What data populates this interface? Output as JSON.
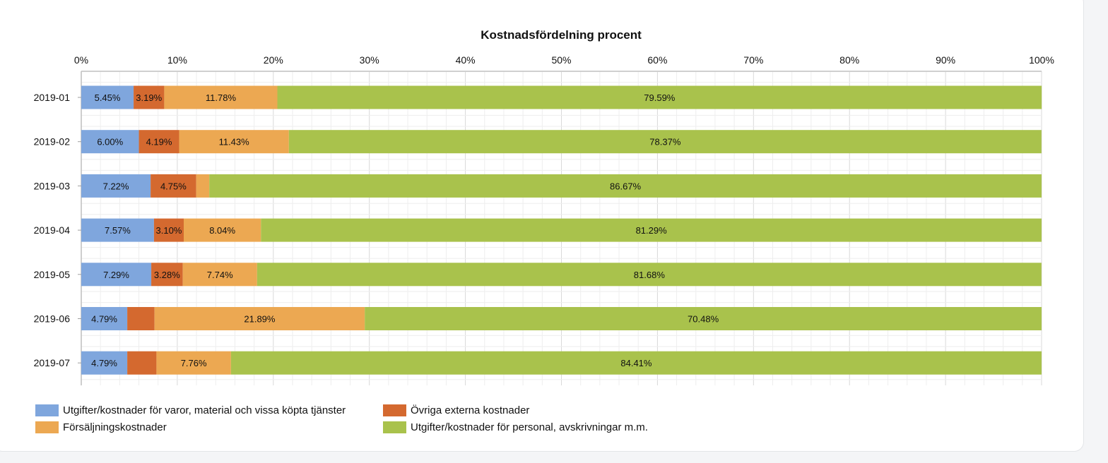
{
  "colors": {
    "varor": "#7fa6dd",
    "externa": "#d4692f",
    "forsaljning": "#eca852",
    "personal": "#a9c24c"
  },
  "chart_data": {
    "type": "bar",
    "orientation": "horizontal",
    "stacked": true,
    "title": "Kostnadsfördelning procent",
    "xlim": [
      0,
      100
    ],
    "x_ticks": [
      "0%",
      "10%",
      "20%",
      "30%",
      "40%",
      "50%",
      "60%",
      "70%",
      "80%",
      "90%",
      "100%"
    ],
    "x_axis_position": "top",
    "grid": true,
    "legend_position": "bottom-left",
    "categories": [
      "2019-01",
      "2019-02",
      "2019-03",
      "2019-04",
      "2019-05",
      "2019-06",
      "2019-07"
    ],
    "series": [
      {
        "key": "varor",
        "name": "Utgifter/kostnader för varor, material och vissa köpta tjänster",
        "values": [
          5.45,
          6.0,
          7.22,
          7.57,
          7.29,
          4.79,
          4.79
        ],
        "labels": [
          "5.45%",
          "6.00%",
          "7.22%",
          "7.57%",
          "7.29%",
          "4.79%",
          "4.79%"
        ]
      },
      {
        "key": "externa",
        "name": "Övriga externa kostnader",
        "values": [
          3.19,
          4.19,
          4.75,
          3.1,
          3.28,
          2.84,
          3.04
        ],
        "labels": [
          "3.19%",
          "4.19%",
          "4.75%",
          "3.10%",
          "3.28%",
          "",
          ""
        ]
      },
      {
        "key": "forsaljning",
        "name": "Försäljningskostnader",
        "values": [
          11.78,
          11.43,
          1.36,
          8.04,
          7.74,
          21.89,
          7.76
        ],
        "labels": [
          "11.78%",
          "11.43%",
          "",
          "8.04%",
          "7.74%",
          "21.89%",
          "7.76%"
        ]
      },
      {
        "key": "personal",
        "name": "Utgifter/kostnader för personal, avskrivningar m.m.",
        "values": [
          79.59,
          78.37,
          86.67,
          81.29,
          81.68,
          70.48,
          84.41
        ],
        "labels": [
          "79.59%",
          "78.37%",
          "86.67%",
          "81.29%",
          "81.68%",
          "70.48%",
          "84.41%"
        ]
      }
    ]
  }
}
